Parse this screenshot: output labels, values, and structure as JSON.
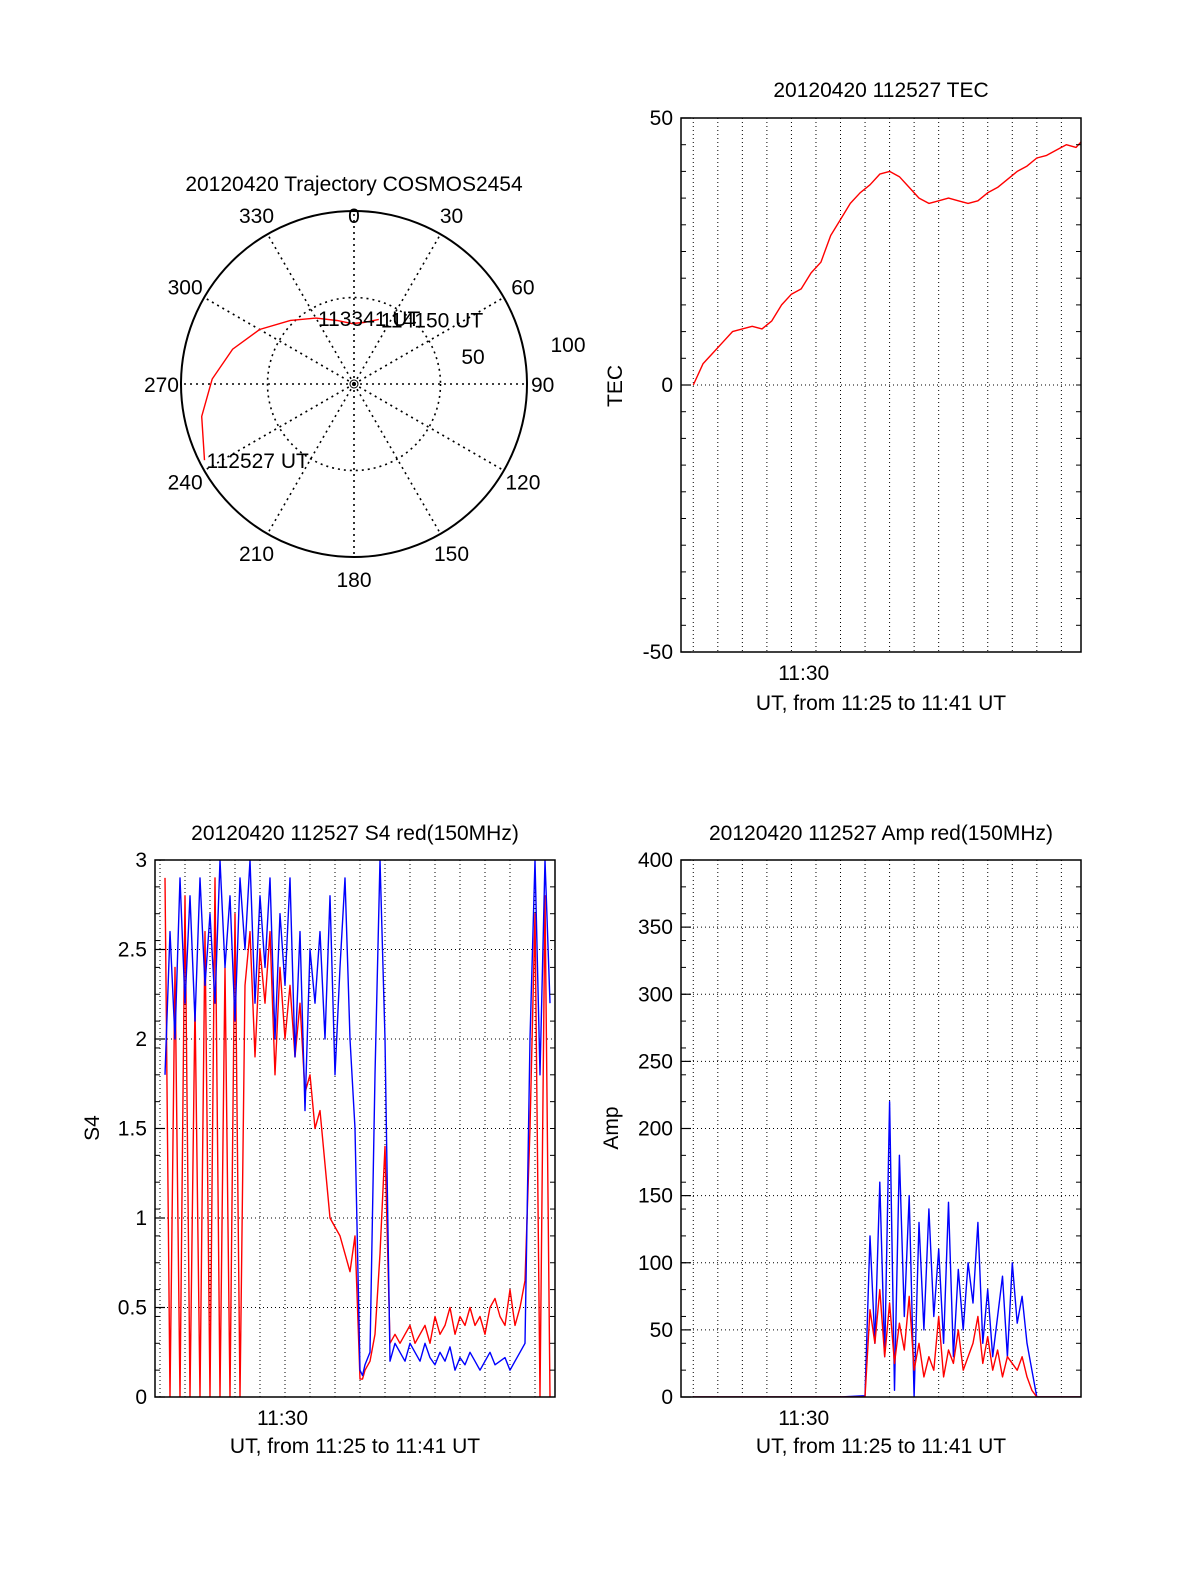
{
  "colors": {
    "red": "#ff0000",
    "blue": "#0000ff",
    "axis": "#000000",
    "grid": "#000000"
  },
  "chart_data": [
    {
      "id": "polar",
      "type": "polar-trajectory",
      "title": "20120420 Trajectory COSMOS2454",
      "azimuth_labels": [
        "0",
        "30",
        "60",
        "90",
        "120",
        "150",
        "180",
        "210",
        "240",
        "270",
        "300",
        "330"
      ],
      "radial_labels": [
        "50",
        "100"
      ],
      "radial_range": [
        0,
        100
      ],
      "series": [
        {
          "color": "#ff0000",
          "points": [
            [
              243,
              97
            ],
            [
              258,
              90
            ],
            [
              272,
              82
            ],
            [
              286,
              73
            ],
            [
              300,
              63
            ],
            [
              315,
              52
            ],
            [
              330,
              44
            ],
            [
              345,
              38
            ],
            [
              358,
              35
            ],
            [
              9,
              36
            ],
            [
              21,
              40
            ]
          ]
        }
      ],
      "annotations": [
        {
          "text": "114150 UT",
          "az": 21,
          "r": 40
        },
        {
          "text": "113341 UT",
          "az": 330,
          "r": 44
        },
        {
          "text": "112527 UT",
          "az": 243,
          "r": 97
        }
      ]
    },
    {
      "id": "tec",
      "type": "line",
      "title": "20120420 112527 TEC",
      "xlabel": "UT, from 11:25 to 11:41 UT",
      "ylabel": "TEC",
      "xlim": [
        -0.5,
        15.8
      ],
      "ylim": [
        -50,
        50
      ],
      "x_ticks": [
        {
          "value": 4.5,
          "label": "11:30"
        }
      ],
      "y_ticks": [
        {
          "value": -50,
          "label": "-50"
        },
        {
          "value": 0,
          "label": "0"
        },
        {
          "value": 50,
          "label": "50"
        }
      ],
      "grid": true,
      "series": [
        {
          "color": "#ff0000",
          "x": [
            0,
            0.4,
            0.8,
            1.2,
            1.6,
            2.0,
            2.4,
            2.8,
            3.2,
            3.6,
            4.0,
            4.4,
            4.8,
            5.2,
            5.6,
            6.0,
            6.4,
            6.8,
            7.2,
            7.6,
            8.0,
            8.4,
            8.8,
            9.2,
            9.6,
            10.0,
            10.4,
            10.8,
            11.2,
            11.6,
            12.0,
            12.4,
            12.8,
            13.2,
            13.6,
            14.0,
            14.4,
            14.8,
            15.2,
            15.6,
            15.8
          ],
          "y": [
            0,
            4,
            6,
            8,
            10,
            10.5,
            11,
            10.5,
            12,
            15,
            17,
            18,
            21,
            23,
            28,
            31,
            34,
            36,
            37.5,
            39.5,
            40,
            39,
            37,
            35,
            34,
            34.5,
            35,
            34.5,
            34,
            34.5,
            36,
            37,
            38.5,
            40,
            41,
            42.5,
            43,
            44,
            45,
            44.5,
            45.5
          ]
        }
      ]
    },
    {
      "id": "s4",
      "type": "line",
      "title": "20120420 112527 S4 red(150MHz)",
      "xlabel": "UT, from 11:25 to 11:41 UT",
      "ylabel": "S4",
      "xlim": [
        -0.2,
        15.8
      ],
      "ylim": [
        0,
        3
      ],
      "x_ticks": [
        {
          "value": 4.9,
          "label": "11:30"
        }
      ],
      "y_ticks": [
        {
          "value": 0,
          "label": "0"
        },
        {
          "value": 0.5,
          "label": "0.5"
        },
        {
          "value": 1,
          "label": "1"
        },
        {
          "value": 1.5,
          "label": "1.5"
        },
        {
          "value": 2,
          "label": "2"
        },
        {
          "value": 2.5,
          "label": "2.5"
        },
        {
          "value": 3,
          "label": "3"
        }
      ],
      "grid": true,
      "series": [
        {
          "color": "#ff0000",
          "x": [
            0.2,
            0.4,
            0.6,
            0.8,
            1.0,
            1.2,
            1.4,
            1.6,
            1.8,
            2.0,
            2.2,
            2.4,
            2.6,
            2.8,
            3.0,
            3.2,
            3.4,
            3.6,
            3.8,
            4.0,
            4.2,
            4.4,
            4.6,
            4.8,
            5.0,
            5.2,
            5.4,
            5.6,
            5.8,
            6.0,
            6.2,
            6.4,
            6.6,
            6.8,
            7.0,
            7.2,
            7.4,
            7.6,
            7.8,
            8.0,
            8.1,
            8.2,
            8.4,
            8.6,
            8.8,
            9.0,
            9.2,
            9.4,
            9.6,
            9.8,
            10.0,
            10.2,
            10.4,
            10.6,
            10.8,
            11.0,
            11.2,
            11.4,
            11.6,
            11.8,
            12.0,
            12.2,
            12.4,
            12.6,
            12.8,
            13.0,
            13.2,
            13.4,
            13.6,
            13.8,
            14.0,
            14.2,
            14.4,
            14.6,
            14.8,
            15.0,
            15.2,
            15.4,
            15.6
          ],
          "y": [
            2.9,
            0,
            2.4,
            0,
            2.8,
            0,
            2.2,
            0,
            2.6,
            0,
            2.9,
            0,
            2.4,
            0,
            2.7,
            0,
            2.3,
            2.6,
            1.9,
            2.5,
            2.2,
            2.6,
            1.8,
            2.4,
            2.0,
            2.3,
            1.9,
            2.2,
            1.7,
            1.8,
            1.5,
            1.6,
            1.3,
            1.0,
            0.95,
            0.9,
            0.8,
            0.7,
            0.9,
            0.1,
            0.1,
            0.15,
            0.2,
            0.35,
            0.8,
            1.4,
            0.3,
            0.35,
            0.3,
            0.35,
            0.4,
            0.3,
            0.35,
            0.4,
            0.3,
            0.45,
            0.35,
            0.4,
            0.5,
            0.35,
            0.45,
            0.4,
            0.5,
            0.4,
            0.45,
            0.35,
            0.5,
            0.55,
            0.45,
            0.4,
            0.6,
            0.4,
            0.5,
            0.65,
            1.5,
            2.7,
            0,
            2.8,
            0
          ]
        },
        {
          "color": "#0000ff",
          "x": [
            0.2,
            0.4,
            0.6,
            0.8,
            1.0,
            1.2,
            1.4,
            1.6,
            1.8,
            2.0,
            2.2,
            2.4,
            2.6,
            2.8,
            3.0,
            3.2,
            3.4,
            3.6,
            3.8,
            4.0,
            4.2,
            4.4,
            4.6,
            4.8,
            5.0,
            5.2,
            5.4,
            5.6,
            5.8,
            6.0,
            6.2,
            6.4,
            6.6,
            6.8,
            7.0,
            7.2,
            7.4,
            7.6,
            7.8,
            8.0,
            8.1,
            8.2,
            8.4,
            8.6,
            8.8,
            9.0,
            9.2,
            9.4,
            9.6,
            9.8,
            10.0,
            10.2,
            10.4,
            10.6,
            10.8,
            11.0,
            11.2,
            11.4,
            11.6,
            11.8,
            12.0,
            12.2,
            12.4,
            12.6,
            12.8,
            13.0,
            13.2,
            13.4,
            13.6,
            13.8,
            14.0,
            14.2,
            14.4,
            14.6,
            14.8,
            15.0,
            15.2,
            15.4,
            15.6
          ],
          "y": [
            1.8,
            2.6,
            2.0,
            2.9,
            2.2,
            2.8,
            2.1,
            2.9,
            2.3,
            2.7,
            2.2,
            3.0,
            2.4,
            2.8,
            2.1,
            2.9,
            2.5,
            3.0,
            2.2,
            2.8,
            2.4,
            2.9,
            2.0,
            2.7,
            2.3,
            2.9,
            1.9,
            2.6,
            1.6,
            2.5,
            2.2,
            2.6,
            2.0,
            2.8,
            1.8,
            2.4,
            2.9,
            2.0,
            1.5,
            0.15,
            0.12,
            0.18,
            0.25,
            1.8,
            3.0,
            2.0,
            0.2,
            0.3,
            0.25,
            0.2,
            0.3,
            0.25,
            0.2,
            0.3,
            0.22,
            0.18,
            0.25,
            0.2,
            0.28,
            0.15,
            0.22,
            0.18,
            0.25,
            0.2,
            0.15,
            0.2,
            0.25,
            0.18,
            0.2,
            0.22,
            0.15,
            0.2,
            0.25,
            0.3,
            2.0,
            3.0,
            1.8,
            3.0,
            2.2
          ]
        }
      ]
    },
    {
      "id": "amp",
      "type": "line",
      "title": "20120420 112527 Amp red(150MHz)",
      "xlabel": "UT, from 11:25 to 11:41 UT",
      "ylabel": "Amp",
      "xlim": [
        -0.5,
        15.8
      ],
      "ylim": [
        0,
        400
      ],
      "x_ticks": [
        {
          "value": 4.5,
          "label": "11:30"
        }
      ],
      "y_ticks": [
        {
          "value": 0,
          "label": "0"
        },
        {
          "value": 50,
          "label": "50"
        },
        {
          "value": 100,
          "label": "100"
        },
        {
          "value": 150,
          "label": "150"
        },
        {
          "value": 200,
          "label": "200"
        },
        {
          "value": 250,
          "label": "250"
        },
        {
          "value": 300,
          "label": "300"
        },
        {
          "value": 350,
          "label": "350"
        },
        {
          "value": 400,
          "label": "400"
        }
      ],
      "grid": true,
      "series": [
        {
          "color": "#0000ff",
          "x": [
            0,
            2,
            4,
            6,
            7.0,
            7.2,
            7.4,
            7.6,
            7.8,
            8.0,
            8.2,
            8.4,
            8.6,
            8.8,
            9.0,
            9.2,
            9.4,
            9.6,
            9.8,
            10.0,
            10.2,
            10.4,
            10.6,
            10.8,
            11.0,
            11.2,
            11.4,
            11.6,
            11.8,
            12.0,
            12.2,
            12.4,
            12.6,
            12.8,
            13.0,
            13.2,
            13.4,
            13.6,
            13.8,
            14.0,
            14.5,
            15.0,
            15.8
          ],
          "y": [
            0,
            0,
            0,
            0,
            1,
            120,
            40,
            160,
            30,
            220,
            5,
            180,
            60,
            150,
            0,
            130,
            50,
            140,
            60,
            110,
            40,
            145,
            30,
            95,
            50,
            100,
            70,
            130,
            40,
            80,
            30,
            60,
            90,
            30,
            100,
            55,
            75,
            40,
            20,
            0,
            0,
            0,
            0
          ]
        },
        {
          "color": "#ff0000",
          "x": [
            0,
            2,
            4,
            6,
            7.0,
            7.2,
            7.4,
            7.6,
            7.8,
            8.0,
            8.2,
            8.4,
            8.6,
            8.8,
            9.0,
            9.2,
            9.4,
            9.6,
            9.8,
            10.0,
            10.2,
            10.4,
            10.6,
            10.8,
            11.0,
            11.2,
            11.4,
            11.6,
            11.8,
            12.0,
            12.2,
            12.4,
            12.6,
            12.8,
            13.0,
            13.2,
            13.4,
            13.6,
            13.8,
            14.0,
            14.5,
            15.0,
            15.8
          ],
          "y": [
            0,
            0,
            0,
            0,
            0,
            65,
            40,
            80,
            30,
            70,
            25,
            55,
            35,
            75,
            20,
            40,
            15,
            30,
            20,
            60,
            15,
            35,
            25,
            50,
            20,
            30,
            40,
            60,
            25,
            45,
            20,
            35,
            15,
            30,
            25,
            20,
            30,
            15,
            5,
            0,
            0,
            0,
            0
          ]
        }
      ]
    }
  ]
}
